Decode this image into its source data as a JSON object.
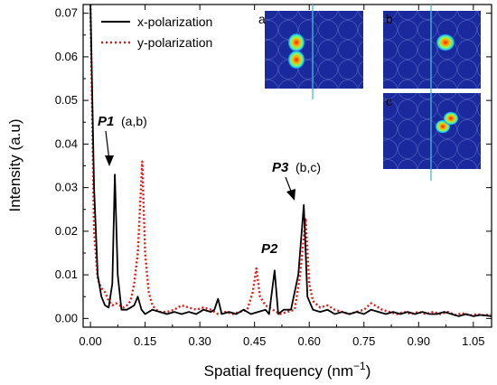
{
  "chart_data": {
    "type": "line",
    "xlabel": "Spatial frequency (nm",
    "xlabel_sup": "−1",
    "xlabel_close": ")",
    "ylabel": "Intensity (a.u)",
    "xlim": [
      -0.02,
      1.1
    ],
    "ylim": [
      -0.002,
      0.072
    ],
    "x_ticks": [
      0.0,
      0.15,
      0.3,
      0.45,
      0.6,
      0.75,
      0.9,
      1.05
    ],
    "x_tick_labels": [
      "0.00",
      "0.15",
      "0.30",
      "0.45",
      "0.60",
      "0.75",
      "0.90",
      "1.05"
    ],
    "y_ticks": [
      0.0,
      0.01,
      0.02,
      0.03,
      0.04,
      0.05,
      0.06,
      0.07
    ],
    "y_tick_labels": [
      "0.00",
      "0.01",
      "0.02",
      "0.03",
      "0.04",
      "0.05",
      "0.06",
      "0.07"
    ],
    "legend_position": "top-left",
    "series": [
      {
        "name": "x-polarization",
        "color": "#000000",
        "dash": "solid",
        "points": [
          [
            0.0,
            0.072
          ],
          [
            0.01,
            0.03
          ],
          [
            0.02,
            0.01
          ],
          [
            0.03,
            0.005
          ],
          [
            0.04,
            0.003
          ],
          [
            0.05,
            0.0025
          ],
          [
            0.06,
            0.008
          ],
          [
            0.067,
            0.033
          ],
          [
            0.075,
            0.01
          ],
          [
            0.085,
            0.002
          ],
          [
            0.1,
            0.002
          ],
          [
            0.11,
            0.0025
          ],
          [
            0.12,
            0.003
          ],
          [
            0.13,
            0.005
          ],
          [
            0.14,
            0.002
          ],
          [
            0.15,
            0.001
          ],
          [
            0.17,
            0.002
          ],
          [
            0.19,
            0.0015
          ],
          [
            0.21,
            0.001
          ],
          [
            0.23,
            0.0015
          ],
          [
            0.25,
            0.001
          ],
          [
            0.27,
            0.0015
          ],
          [
            0.29,
            0.001
          ],
          [
            0.31,
            0.002
          ],
          [
            0.33,
            0.0015
          ],
          [
            0.34,
            0.002
          ],
          [
            0.35,
            0.0045
          ],
          [
            0.36,
            0.001
          ],
          [
            0.38,
            0.0015
          ],
          [
            0.4,
            0.001
          ],
          [
            0.42,
            0.002
          ],
          [
            0.44,
            0.001
          ],
          [
            0.46,
            0.0015
          ],
          [
            0.48,
            0.002
          ],
          [
            0.49,
            0.001
          ],
          [
            0.505,
            0.011
          ],
          [
            0.515,
            0.001
          ],
          [
            0.53,
            0.002
          ],
          [
            0.55,
            0.002
          ],
          [
            0.57,
            0.01
          ],
          [
            0.585,
            0.026
          ],
          [
            0.595,
            0.005
          ],
          [
            0.61,
            0.002
          ],
          [
            0.63,
            0.0015
          ],
          [
            0.65,
            0.002
          ],
          [
            0.67,
            0.001
          ],
          [
            0.69,
            0.0015
          ],
          [
            0.71,
            0.001
          ],
          [
            0.73,
            0.0015
          ],
          [
            0.75,
            0.001
          ],
          [
            0.77,
            0.002
          ],
          [
            0.79,
            0.0015
          ],
          [
            0.81,
            0.001
          ],
          [
            0.83,
            0.0015
          ],
          [
            0.85,
            0.001
          ],
          [
            0.87,
            0.0015
          ],
          [
            0.89,
            0.001
          ],
          [
            0.91,
            0.0015
          ],
          [
            0.93,
            0.001
          ],
          [
            0.95,
            0.001
          ],
          [
            0.97,
            0.0015
          ],
          [
            0.99,
            0.001
          ],
          [
            1.01,
            0.0005
          ],
          [
            1.03,
            0.001
          ],
          [
            1.05,
            0.0005
          ],
          [
            1.07,
            0.0008
          ],
          [
            1.1,
            0.0005
          ]
        ]
      },
      {
        "name": "y-polarization",
        "color": "#e3191c",
        "dash": "dotted",
        "points": [
          [
            0.0,
            0.072
          ],
          [
            0.01,
            0.02
          ],
          [
            0.02,
            0.009
          ],
          [
            0.03,
            0.007
          ],
          [
            0.04,
            0.006
          ],
          [
            0.05,
            0.004
          ],
          [
            0.06,
            0.003
          ],
          [
            0.07,
            0.0035
          ],
          [
            0.08,
            0.003
          ],
          [
            0.09,
            0.0025
          ],
          [
            0.1,
            0.003
          ],
          [
            0.11,
            0.004
          ],
          [
            0.12,
            0.008
          ],
          [
            0.13,
            0.015
          ],
          [
            0.142,
            0.036
          ],
          [
            0.15,
            0.015
          ],
          [
            0.16,
            0.006
          ],
          [
            0.17,
            0.003
          ],
          [
            0.18,
            0.002
          ],
          [
            0.19,
            0.0015
          ],
          [
            0.21,
            0.0015
          ],
          [
            0.23,
            0.002
          ],
          [
            0.25,
            0.003
          ],
          [
            0.27,
            0.0025
          ],
          [
            0.29,
            0.002
          ],
          [
            0.31,
            0.0025
          ],
          [
            0.33,
            0.002
          ],
          [
            0.35,
            0.001
          ],
          [
            0.37,
            0.0015
          ],
          [
            0.39,
            0.001
          ],
          [
            0.41,
            0.0015
          ],
          [
            0.43,
            0.002
          ],
          [
            0.445,
            0.006
          ],
          [
            0.455,
            0.0115
          ],
          [
            0.465,
            0.005
          ],
          [
            0.48,
            0.003
          ],
          [
            0.5,
            0.002
          ],
          [
            0.52,
            0.001
          ],
          [
            0.54,
            0.0015
          ],
          [
            0.56,
            0.002
          ],
          [
            0.575,
            0.01
          ],
          [
            0.59,
            0.023
          ],
          [
            0.6,
            0.008
          ],
          [
            0.61,
            0.004
          ],
          [
            0.63,
            0.0025
          ],
          [
            0.65,
            0.003
          ],
          [
            0.67,
            0.002
          ],
          [
            0.69,
            0.0015
          ],
          [
            0.71,
            0.001
          ],
          [
            0.73,
            0.0015
          ],
          [
            0.75,
            0.002
          ],
          [
            0.77,
            0.0035
          ],
          [
            0.78,
            0.003
          ],
          [
            0.8,
            0.002
          ],
          [
            0.82,
            0.0015
          ],
          [
            0.84,
            0.001
          ],
          [
            0.86,
            0.0015
          ],
          [
            0.88,
            0.001
          ],
          [
            0.9,
            0.0015
          ],
          [
            0.92,
            0.001
          ],
          [
            0.94,
            0.0015
          ],
          [
            0.96,
            0.001
          ],
          [
            0.98,
            0.0015
          ],
          [
            1.0,
            0.0008
          ],
          [
            1.02,
            0.0012
          ],
          [
            1.04,
            0.0007
          ],
          [
            1.06,
            0.001
          ],
          [
            1.08,
            0.0007
          ],
          [
            1.1,
            0.0009
          ]
        ]
      }
    ],
    "annotations": {
      "p1_label": "P1",
      "p1_sub": "(a,b)",
      "p1_target": [
        0.067,
        0.033
      ],
      "p2_label": "P2",
      "p3_label": "P3",
      "p3_sub": "(b,c)",
      "p3_target": [
        0.585,
        0.026
      ]
    },
    "insets": {
      "a_label": "a",
      "b_label": "b",
      "c_label": "c",
      "background_color": "#1a2a9c",
      "line_color": "#3fbfd0"
    }
  }
}
